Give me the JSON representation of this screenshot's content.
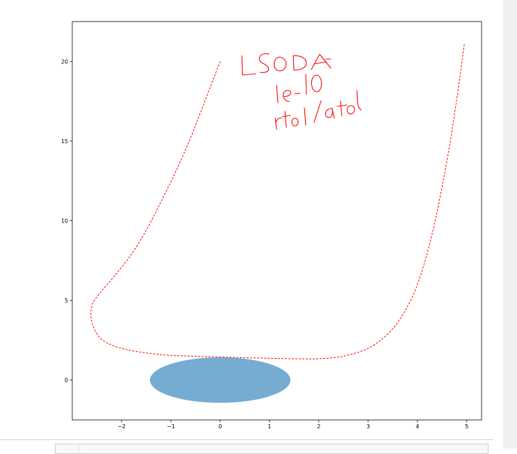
{
  "chart_data": {
    "type": "line",
    "title": "",
    "xlabel": "",
    "ylabel": "",
    "xlim": [
      -3.0,
      5.3
    ],
    "ylim": [
      -2.5,
      22.5
    ],
    "x_ticks": [
      -2,
      -1,
      0,
      1,
      2,
      3,
      4,
      5
    ],
    "y_ticks": [
      0,
      5,
      10,
      15,
      20
    ],
    "grid": false,
    "series": [
      {
        "style": "dashed",
        "color": "#ff0000",
        "points": [
          [
            0.0,
            20.0
          ],
          [
            -0.3,
            17.6
          ],
          [
            -0.6,
            15.2
          ],
          [
            -0.9,
            13.1
          ],
          [
            -1.2,
            11.2
          ],
          [
            -1.5,
            9.4
          ],
          [
            -1.8,
            7.9
          ],
          [
            -2.1,
            6.7
          ],
          [
            -2.4,
            5.6
          ],
          [
            -2.6,
            4.7
          ],
          [
            -2.6,
            3.6
          ],
          [
            -2.45,
            2.7
          ],
          [
            -2.2,
            2.2
          ],
          [
            -1.8,
            1.85
          ],
          [
            -1.2,
            1.6
          ],
          [
            -0.6,
            1.5
          ],
          [
            0.0,
            1.45
          ],
          [
            0.5,
            1.4
          ],
          [
            1.0,
            1.37
          ],
          [
            1.5,
            1.34
          ],
          [
            2.0,
            1.34
          ],
          [
            2.5,
            1.5
          ],
          [
            3.0,
            2.0
          ],
          [
            3.4,
            2.9
          ],
          [
            3.7,
            4.1
          ],
          [
            4.0,
            6.0
          ],
          [
            4.3,
            9.2
          ],
          [
            4.6,
            13.8
          ],
          [
            4.8,
            17.7
          ],
          [
            4.95,
            21.1
          ]
        ]
      }
    ],
    "ellipse": {
      "center": [
        0.0,
        0.0
      ],
      "width": 2.85,
      "height": 2.85,
      "color": "#76acd2"
    },
    "annotations": [
      "LSODA",
      "1e-10",
      "rtol/atol"
    ]
  },
  "annotation_color": "#ff0000"
}
